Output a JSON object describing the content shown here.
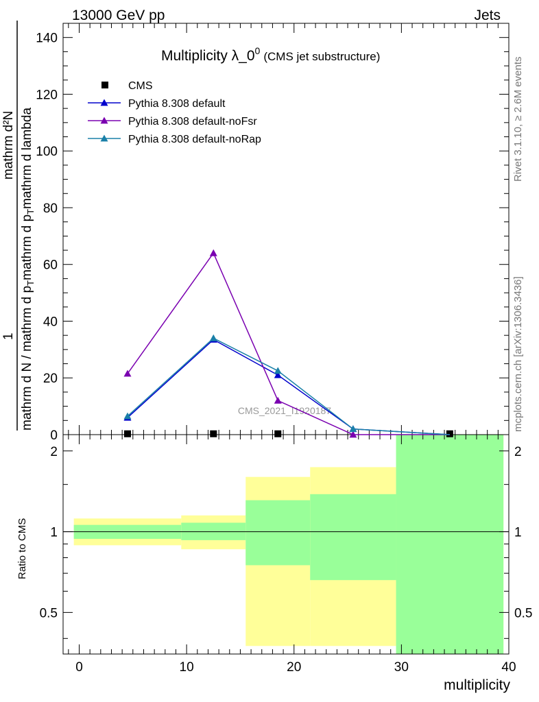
{
  "header": {
    "left": "13000 GeV pp",
    "right": "Jets"
  },
  "side_texts": {
    "rivet": "Rivet 3.1.10, ≥ 2.6M events",
    "mcplots": "mcplots.cern.ch [arXiv:1306.3436]"
  },
  "watermark": "CMS_2021_I1920187",
  "title": {
    "main": "Multiplicity λ_0",
    "superscript": "0",
    "sub": "(CMS jet substructure)"
  },
  "ylabel_main": {
    "numerator": "mathrm d²N",
    "lower_numerator": "1",
    "denominator": "mathrm d N / mathrm d p_T mathrm d p_T mathrm d lambda",
    "full": "1 / (mathrm d N / mathrm d p_T) · mathrm d²N / (mathrm d p_T mathrm d lambda)"
  },
  "ylabel_ratio": "Ratio to CMS",
  "xlabel": "multiplicity",
  "legend": {
    "position": "top-left",
    "entries": [
      {
        "label": "CMS",
        "color": "#000000",
        "marker": "square"
      },
      {
        "label": "Pythia 8.308 default",
        "color": "#0000cc",
        "marker": "triangle"
      },
      {
        "label": "Pythia 8.308 default-noFsr",
        "color": "#7a00b0",
        "marker": "triangle"
      },
      {
        "label": "Pythia 8.308 default-noRap",
        "color": "#1a80a8",
        "marker": "triangle"
      }
    ]
  },
  "chart_data": {
    "type": "line",
    "xlim": [
      -1.5,
      40
    ],
    "ylim_main": [
      0,
      145
    ],
    "ylim_ratio": [
      0.35,
      2.3
    ],
    "ratio_log_scale": true,
    "x_ticks": [
      0,
      10,
      20,
      30,
      40
    ],
    "y_ticks_main": [
      0,
      20,
      40,
      60,
      80,
      100,
      120,
      140
    ],
    "y_ticks_ratio": [
      0.5,
      1,
      2
    ],
    "x_bin_edges": [
      -0.5,
      9.5,
      15.5,
      21.5,
      29.5,
      39.5
    ],
    "x_points": [
      4.5,
      12.5,
      18.5,
      25.5,
      34.5
    ],
    "series": [
      {
        "name": "CMS",
        "color": "#000000",
        "values": [
          0.3,
          0.3,
          0.3,
          0,
          0.3
        ]
      },
      {
        "name": "Pythia 8.308 default",
        "color": "#0000cc",
        "values": [
          6,
          33.5,
          21,
          2,
          0
        ]
      },
      {
        "name": "Pythia 8.308 default-noFsr",
        "color": "#7a00b0",
        "values": [
          21.5,
          64,
          12,
          0,
          0
        ]
      },
      {
        "name": "Pythia 8.308 default-noRap",
        "color": "#1a80a8",
        "values": [
          6.5,
          34,
          22.5,
          2,
          0
        ]
      }
    ],
    "ratio_bands": [
      {
        "x0": -0.5,
        "x1": 9.5,
        "yellow_lo": 0.89,
        "yellow_hi": 1.12,
        "green_lo": 0.94,
        "green_hi": 1.06
      },
      {
        "x0": 9.5,
        "x1": 15.5,
        "yellow_lo": 0.86,
        "yellow_hi": 1.15,
        "green_lo": 0.93,
        "green_hi": 1.08
      },
      {
        "x0": 15.5,
        "x1": 21.5,
        "yellow_lo": 0.375,
        "yellow_hi": 1.6,
        "green_lo": 0.75,
        "green_hi": 1.31
      },
      {
        "x0": 21.5,
        "x1": 29.5,
        "yellow_lo": 0.375,
        "yellow_hi": 1.74,
        "green_lo": 0.66,
        "green_hi": 1.38
      },
      {
        "x0": 29.5,
        "x1": 39.5,
        "yellow_lo": 0.35,
        "yellow_hi": 2.3,
        "green_lo": 0.35,
        "green_hi": 2.3
      }
    ],
    "colors": {
      "yellow_band": "#ffff99",
      "green_band": "#99ff99"
    }
  }
}
